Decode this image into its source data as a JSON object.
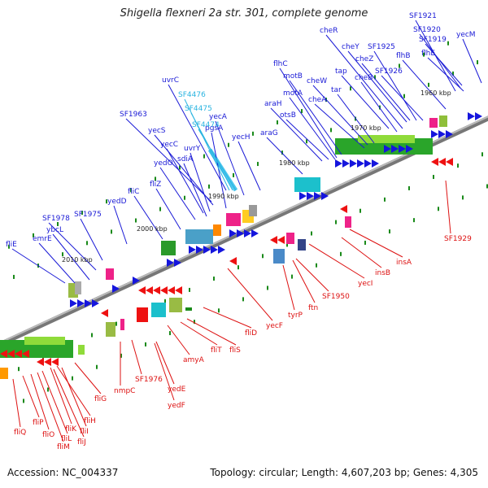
{
  "header": {
    "title": "Shigella flexneri 2a str. 301, complete genome"
  },
  "footer": {
    "accession": "Accession: NC_004337",
    "summary": "Topology: circular; Length: 4,607,203 bp; Genes: 4,305"
  },
  "scale": {
    "ticks": [
      "1960 kbp",
      "1970 kbp",
      "1980 kbp",
      "1990 kbp",
      "2000 kbp",
      "2010 kbp"
    ]
  },
  "colors": {
    "forward_label": "#1a1ad6",
    "reverse_label": "#dd1111",
    "highlight_label": "#2ab4e0",
    "backbone": "#8a8a8a",
    "tick": "#1a8a1a"
  },
  "labels": {
    "forward": [
      "SF1921",
      "SF1920",
      "SF1919",
      "yecM",
      "cheR",
      "cheY",
      "SF1925",
      "flhE",
      "cheZ",
      "flhB",
      "SF1926",
      "tap",
      "cheB",
      "flhC",
      "motB",
      "cheW",
      "motA",
      "tar",
      "araH",
      "cheA",
      "otsB",
      "uvrC",
      "araG",
      "SF1963",
      "yecH",
      "yecA",
      "yecS",
      "pgsA",
      "uvrY",
      "yecC",
      "sdiA",
      "yedO",
      "fliZ",
      "yedD",
      "fliC",
      "SF1978",
      "SF1975",
      "ybcL",
      "emrE",
      "fliE"
    ],
    "highlight": [
      "SF4476",
      "SF4475",
      "SF4474"
    ],
    "reverse": [
      "SF1929",
      "insA",
      "insB",
      "yecI",
      "SF1950",
      "ftn",
      "tyrP",
      "yecF",
      "fliD",
      "fliS",
      "fliT",
      "amyA",
      "SF1976",
      "yedE",
      "nmpC",
      "yedF",
      "fliG",
      "fliH",
      "fliP",
      "fliK",
      "fliI",
      "fliQ",
      "fliO",
      "fliL",
      "fliJ",
      "fliM"
    ]
  }
}
